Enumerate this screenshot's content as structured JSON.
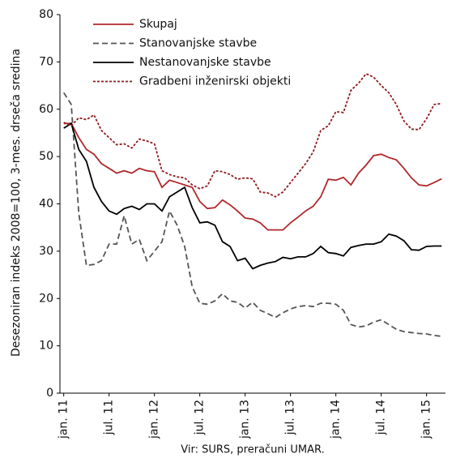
{
  "chart_data": {
    "type": "line",
    "y_label": "Desezoniran indeks 2008=100, 3-mes. drseča sredina",
    "source": "Vir: SURS, preračuni UMAR.",
    "categories": [
      "jan. 11",
      null,
      null,
      null,
      null,
      null,
      "jul. 11",
      null,
      null,
      null,
      null,
      null,
      "jan. 12",
      null,
      null,
      null,
      null,
      null,
      "jul. 12",
      null,
      null,
      null,
      null,
      null,
      "jan. 13",
      null,
      null,
      null,
      null,
      null,
      "jul. 13",
      null,
      null,
      null,
      null,
      null,
      "jan. 14",
      null,
      null,
      null,
      null,
      null,
      "jul. 14",
      null,
      null,
      null,
      null,
      null,
      "jan. 15",
      null,
      null
    ],
    "ylim": [
      0,
      80
    ],
    "yticks": [
      0,
      10,
      20,
      30,
      40,
      50,
      60,
      70,
      80
    ],
    "grid": false,
    "series": [
      {
        "name": "Skupaj",
        "color": "#b0282c",
        "line_style": "solid",
        "values": [
          57,
          57,
          54,
          51.5,
          50.5,
          48.5,
          47.5,
          46.5,
          47,
          46.5,
          47.5,
          47,
          46.8,
          43.5,
          45,
          44.5,
          44,
          43.5,
          40.5,
          39,
          39.2,
          40.8,
          39.8,
          38.5,
          37,
          36.8,
          36,
          34.5,
          34.5,
          34.5,
          36,
          37.2,
          38.5,
          39.5,
          41.5,
          45.2,
          45,
          45.6,
          44,
          46.5,
          48.2,
          50.2,
          50.5,
          49.8,
          49.3,
          47.5,
          45.5,
          44,
          43.8,
          44.5,
          45.3
        ]
      },
      {
        "name": "Stanovanjske stavbe",
        "color": "#555555",
        "line_style": "dashed",
        "values": [
          63.5,
          61,
          38,
          27,
          27.2,
          28,
          31.5,
          31.5,
          37.5,
          31.5,
          32.5,
          28,
          30,
          32,
          38.5,
          35.5,
          31,
          22.5,
          19,
          18.8,
          19.5,
          21,
          19.5,
          19.2,
          18,
          19.2,
          17.5,
          16.8,
          16,
          17,
          17.8,
          18.3,
          18.5,
          18.3,
          19,
          19,
          18.8,
          17.5,
          14.5,
          14,
          14.2,
          15,
          15.5,
          14.5,
          13.5,
          13,
          12.8,
          12.6,
          12.5,
          12.2,
          12
        ]
      },
      {
        "name": "Nestanovanjske stavbe",
        "color": "#000000",
        "line_style": "solid",
        "values": [
          56,
          57,
          51.5,
          49,
          43.5,
          40.5,
          38.5,
          37.8,
          39,
          39.5,
          38.8,
          40,
          40,
          38.5,
          41.5,
          42.5,
          43.5,
          39.2,
          36,
          36.2,
          35.5,
          32,
          31,
          28,
          28.5,
          26.3,
          27,
          27.5,
          27.8,
          28.7,
          28.4,
          28.8,
          28.8,
          29.5,
          31,
          29.7,
          29.5,
          29,
          30.8,
          31.2,
          31.5,
          31.5,
          32,
          33.6,
          33.2,
          32.2,
          30.3,
          30.2,
          31,
          31.1,
          31.1
        ]
      },
      {
        "name": "Gradbeni inženirski objekti",
        "color": "#8e1b1f",
        "line_style": "dotted",
        "values": [
          57.2,
          56.5,
          58.2,
          57.8,
          58.8,
          55.5,
          54,
          52.5,
          52.7,
          51.8,
          53.7,
          53.3,
          52.7,
          47,
          46.2,
          45.7,
          45.5,
          44,
          43.2,
          43.8,
          47,
          46.8,
          46.2,
          45.2,
          45.5,
          45.3,
          42.5,
          42.3,
          41.5,
          42.5,
          44.5,
          46.5,
          48.5,
          51,
          55.5,
          56.5,
          59.5,
          59.3,
          64,
          65.5,
          67.5,
          66.8,
          65,
          63.5,
          61,
          57.5,
          55.8,
          55.7,
          58,
          61,
          61.2
        ]
      }
    ]
  }
}
